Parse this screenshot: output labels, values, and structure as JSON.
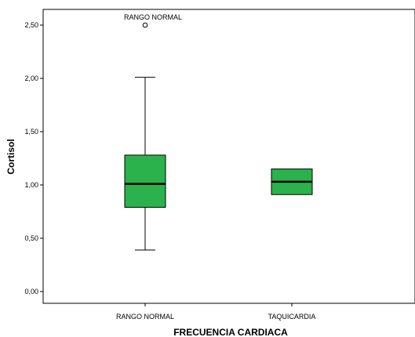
{
  "chart_data": {
    "type": "box",
    "xlabel": "FRECUENCIA CARDIACA",
    "ylabel": "Cortisol",
    "ylim": [
      -0.08,
      2.68
    ],
    "yticks": [
      {
        "value": 0.0,
        "label": "0,00"
      },
      {
        "value": 0.5,
        "label": "0,50"
      },
      {
        "value": 1.0,
        "label": "1,00"
      },
      {
        "value": 1.5,
        "label": "1,50"
      },
      {
        "value": 2.0,
        "label": "2,00"
      },
      {
        "value": 2.5,
        "label": "2,50"
      }
    ],
    "categories": [
      "RANGO NORMAL",
      "TAQUICARDIA"
    ],
    "boxes": [
      {
        "category": "RANGO NORMAL",
        "whisker_low": 0.39,
        "q1": 0.79,
        "median": 1.01,
        "q3": 1.28,
        "whisker_high": 2.01,
        "outliers": [
          {
            "value": 2.5,
            "label": "RANGO NORMAL"
          }
        ]
      },
      {
        "category": "TAQUICARDIA",
        "whisker_low": 0.91,
        "q1": 0.91,
        "median": 1.03,
        "q3": 1.15,
        "whisker_high": 1.15,
        "outliers": []
      }
    ],
    "box_color": "#2bb24c",
    "grid": false
  }
}
